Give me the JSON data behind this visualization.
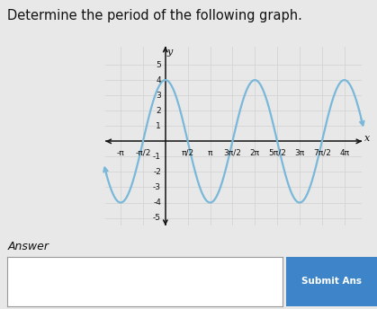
{
  "title": "Determine the period of the following graph.",
  "amplitude": 4,
  "x_min": -4.2,
  "x_max": 13.8,
  "y_min": -5.5,
  "y_max": 6.2,
  "curve_color": "#7ab8d9",
  "curve_linewidth": 1.6,
  "axis_color": "#111111",
  "grid_color": "#d0d0d0",
  "background_color": "#e8e8e8",
  "plot_bg_color": "#e8e8e8",
  "tick_labels_x": [
    "-π",
    "-π/2",
    "π/2",
    "π",
    "3π/2",
    "2π",
    "5π/2",
    "3π",
    "7π/2",
    "4π"
  ],
  "tick_vals_x_multiples": [
    -1,
    -0.5,
    0.5,
    1,
    1.5,
    2,
    2.5,
    3,
    3.5,
    4
  ],
  "tick_vals_y": [
    -5,
    -4,
    -3,
    -2,
    -1,
    1,
    2,
    3,
    4,
    5
  ],
  "answer_label": "Answer",
  "submit_label": "Submit Ans",
  "font_color": "#111111",
  "title_fontsize": 10.5,
  "tick_fontsize": 6.5,
  "answer_fontsize": 9
}
